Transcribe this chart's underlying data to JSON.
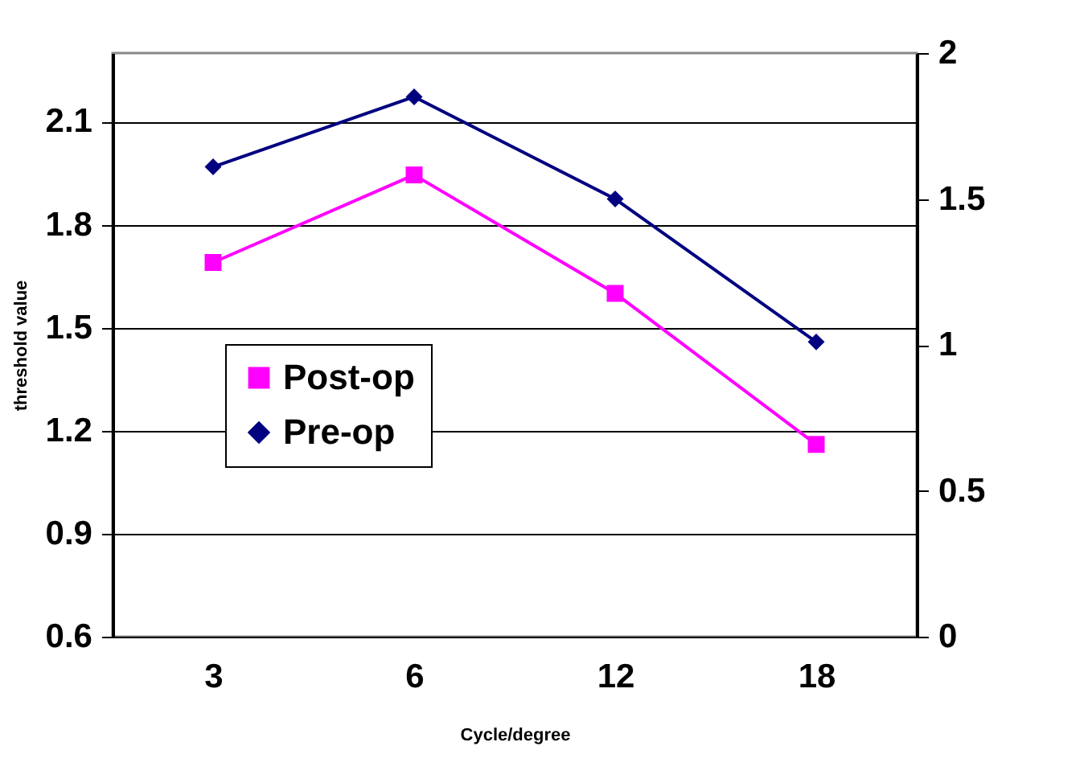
{
  "chart_data": {
    "type": "line",
    "xlabel": "Cycle/degree",
    "ylabel": "threshold value",
    "categories": [
      "3",
      "6",
      "12",
      "18"
    ],
    "ylim": [
      0.6,
      2.3
    ],
    "yticks": [
      0.6,
      0.9,
      1.2,
      1.5,
      1.8,
      2.1
    ],
    "y2lim": [
      0,
      2
    ],
    "y2ticks": [
      0,
      0.5,
      1,
      1.5,
      2
    ],
    "grid": "y",
    "legend": "left",
    "series": [
      {
        "name": "Post-op",
        "color": "#ff00ff",
        "marker": "square",
        "values": [
          1.69,
          1.945,
          1.6,
          1.16
        ]
      },
      {
        "name": "Pre-op",
        "color": "#000080",
        "marker": "diamond",
        "axis": "y2",
        "values": [
          1.61,
          1.85,
          1.5,
          1.01
        ]
      }
    ]
  }
}
